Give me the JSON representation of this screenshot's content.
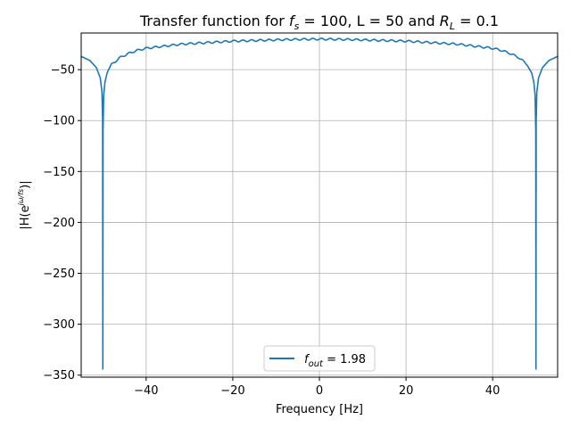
{
  "chart_data": {
    "type": "line",
    "title": {
      "prefix": "Transfer function for ",
      "fs_symbol": "f",
      "fs_sub": "s",
      "fs_value": " = 100, L = 50 and ",
      "rl_symbol": "R",
      "rl_sub": "L",
      "rl_value": " = 0.1"
    },
    "xlabel": "Frequency [Hz]",
    "ylabel": {
      "prefix": "|H(e",
      "superscript": "jω/fs",
      "suffix": ")|"
    },
    "xlim": [
      -55,
      55
    ],
    "ylim": [
      -352,
      -14
    ],
    "xticks": [
      -40,
      -20,
      0,
      20,
      40
    ],
    "xtick_labels": [
      "−40",
      "−20",
      "0",
      "20",
      "40"
    ],
    "yticks": [
      -50,
      -100,
      -150,
      -200,
      -250,
      -300,
      -350
    ],
    "ytick_labels": [
      "−50",
      "−100",
      "−150",
      "−200",
      "−250",
      "−300",
      "−350"
    ],
    "grid": true,
    "legend_placement": "lower-center",
    "series": [
      {
        "name_symbol": "f",
        "name_sub": "out",
        "name_value": " = 1.98",
        "color": "#1f77b4",
        "x": [
          -55,
          -53,
          -51.5,
          -50.6,
          -50.2,
          -50.05,
          -50,
          -49.95,
          -49.8,
          -49.5,
          -49,
          -48,
          -46,
          -44,
          -42,
          -40,
          -36,
          -32,
          -28,
          -24,
          -20,
          -16,
          -12,
          -8,
          -4,
          0,
          4,
          8,
          12,
          16,
          20,
          24,
          28,
          32,
          36,
          40,
          42,
          44,
          46,
          48,
          49,
          49.5,
          49.8,
          49.95,
          50,
          50.05,
          50.2,
          50.6,
          51.5,
          53,
          55
        ],
        "y": [
          -37,
          -41,
          -48,
          -58,
          -72,
          -100,
          -344,
          -110,
          -75,
          -62,
          -53,
          -45,
          -38,
          -34,
          -31,
          -29,
          -27,
          -25,
          -24,
          -23,
          -22,
          -21.5,
          -21,
          -20.5,
          -20.2,
          -20,
          -20.2,
          -20.5,
          -21,
          -21.5,
          -22,
          -23,
          -24,
          -25,
          -27,
          -29,
          -31,
          -34,
          -38,
          -45,
          -53,
          -62,
          -75,
          -110,
          -344,
          -100,
          -72,
          -58,
          -48,
          -41,
          -37
        ]
      }
    ]
  }
}
